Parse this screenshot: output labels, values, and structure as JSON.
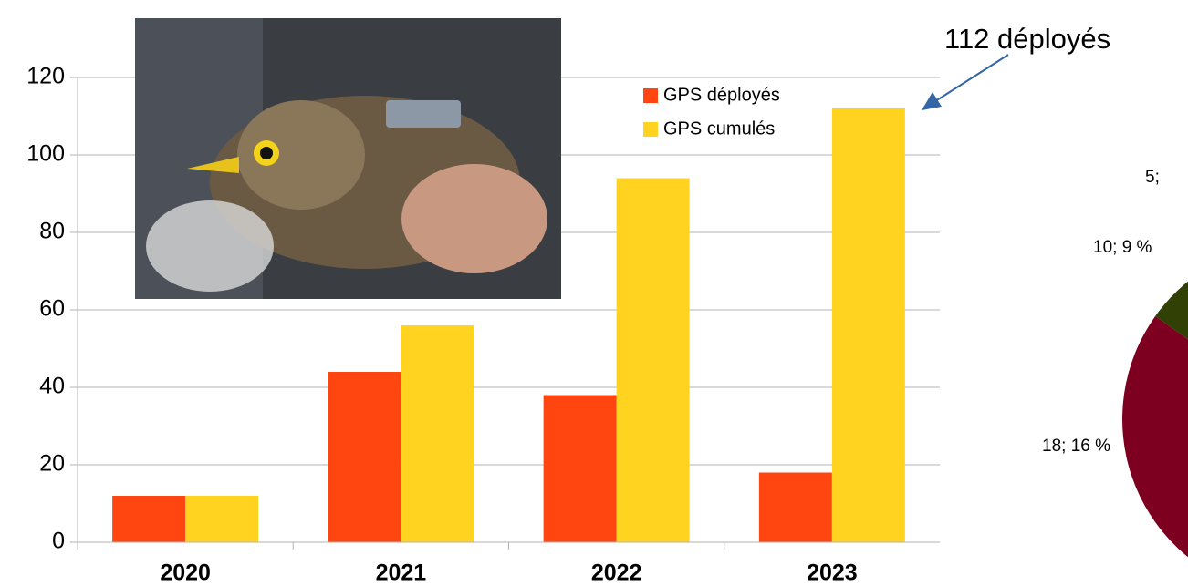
{
  "chart_data": [
    {
      "type": "bar",
      "categories": [
        "2020",
        "2021",
        "2022",
        "2023"
      ],
      "series": [
        {
          "name": "GPS déployés",
          "color": "#ff4510",
          "values": [
            12,
            44,
            38,
            18
          ]
        },
        {
          "name": "GPS cumulés",
          "color": "#ffd320",
          "values": [
            12,
            56,
            94,
            112
          ]
        }
      ],
      "ylim": [
        0,
        120
      ],
      "yticks": [
        0,
        20,
        40,
        60,
        80,
        100,
        120
      ],
      "grid": true,
      "annotation": "112 déployés",
      "legend": "top-right"
    },
    {
      "type": "pie",
      "values": [
        5,
        10,
        18
      ],
      "value_labels": [
        "5;",
        "10; 9 %",
        "18; 16 %"
      ],
      "colors": [
        "#314004",
        "#7e0021",
        "#83caff"
      ]
    }
  ]
}
